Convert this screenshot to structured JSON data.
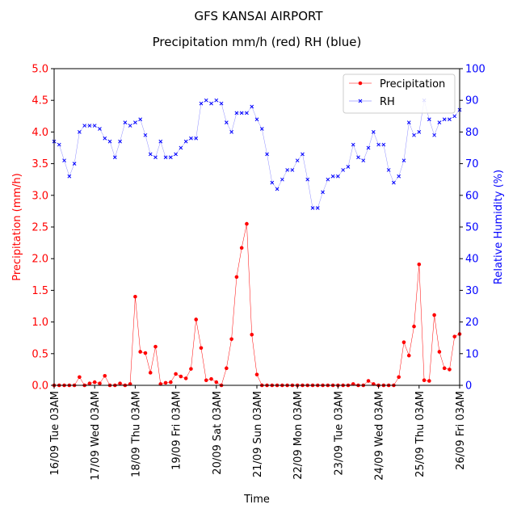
{
  "chart_data": {
    "type": "line",
    "title": "GFS KANSAI AIRPORT",
    "subtitle": "Precipitation mm/h (red) RH (blue)",
    "xlabel": "Time",
    "ylabel_left": "Precipitation (mm/h)",
    "ylabel_right": "Relative Humidity (%)",
    "ylim_left": [
      0,
      5.0
    ],
    "ylim_right": [
      0,
      100
    ],
    "xlim_hours": [
      0,
      240
    ],
    "left_ticks": [
      "0.0",
      "0.5",
      "1.0",
      "1.5",
      "2.0",
      "2.5",
      "3.0",
      "3.5",
      "4.0",
      "4.5",
      "5.0"
    ],
    "right_ticks": [
      "0",
      "10",
      "20",
      "30",
      "40",
      "50",
      "60",
      "70",
      "80",
      "90",
      "100"
    ],
    "x_ticks": [
      {
        "hour": 0,
        "label": "16/09 Tue 03AM"
      },
      {
        "hour": 24,
        "label": "17/09 Wed 03AM"
      },
      {
        "hour": 48,
        "label": "18/09 Thu 03AM"
      },
      {
        "hour": 72,
        "label": "19/09 Fri 03AM"
      },
      {
        "hour": 96,
        "label": "20/09 Sat 03AM"
      },
      {
        "hour": 120,
        "label": "21/09 Sun 03AM"
      },
      {
        "hour": 144,
        "label": "22/09 Mon 03AM"
      },
      {
        "hour": 168,
        "label": "23/09 Tue 03AM"
      },
      {
        "hour": 192,
        "label": "24/09 Wed 03AM"
      },
      {
        "hour": 216,
        "label": "25/09 Thu 03AM"
      },
      {
        "hour": 240,
        "label": "26/09 Fri 03AM"
      }
    ],
    "grid": false,
    "legend": {
      "placement": "top-right",
      "entries": [
        "Precipitation",
        "RH"
      ]
    },
    "colors": {
      "precip": "#ff0000",
      "rh": "#0000ff",
      "axis": "#000000"
    },
    "series": [
      {
        "name": "Precipitation",
        "x": [
          0,
          3,
          6,
          9,
          12,
          15,
          18,
          21,
          24,
          27,
          30,
          33,
          36,
          39,
          42,
          45,
          48,
          51,
          54,
          57,
          60,
          63,
          66,
          69,
          72,
          75,
          78,
          81,
          84,
          87,
          90,
          93,
          96,
          99,
          102,
          105,
          108,
          111,
          114,
          117,
          120,
          123,
          126,
          129,
          132,
          135,
          138,
          141,
          144,
          147,
          150,
          153,
          156,
          159,
          162,
          165,
          168,
          171,
          174,
          177,
          180,
          183,
          186,
          189,
          192,
          195,
          198,
          201,
          204,
          207,
          210,
          213,
          216,
          219,
          222,
          225,
          228,
          231,
          234,
          237,
          240
        ],
        "values": [
          0,
          0,
          0,
          0,
          0,
          0.13,
          0,
          0.03,
          0.05,
          0.03,
          0.15,
          0,
          0,
          0.03,
          0,
          0.02,
          1.4,
          0.53,
          0.51,
          0.2,
          0.61,
          0.02,
          0.04,
          0.05,
          0.18,
          0.14,
          0.11,
          0.26,
          1.04,
          0.59,
          0.08,
          0.1,
          0.05,
          0,
          0.27,
          0.73,
          1.71,
          2.17,
          2.55,
          0.8,
          0.17,
          0,
          0,
          0,
          0,
          0,
          0,
          0,
          0,
          0,
          0,
          0,
          0,
          0,
          0,
          0,
          0,
          0,
          0,
          0.02,
          0,
          0,
          0.07,
          0.02,
          0,
          0,
          0,
          0,
          0.13,
          0.68,
          0.47,
          0.93,
          1.91,
          0.08,
          0.07,
          1.11,
          0.53,
          0.27,
          0.25,
          0.77,
          0.81
        ]
      },
      {
        "name": "RH",
        "x": [
          0,
          3,
          6,
          9,
          12,
          15,
          18,
          21,
          24,
          27,
          30,
          33,
          36,
          39,
          42,
          45,
          48,
          51,
          54,
          57,
          60,
          63,
          66,
          69,
          72,
          75,
          78,
          81,
          84,
          87,
          90,
          93,
          96,
          99,
          102,
          105,
          108,
          111,
          114,
          117,
          120,
          123,
          126,
          129,
          132,
          135,
          138,
          141,
          144,
          147,
          150,
          153,
          156,
          159,
          162,
          165,
          168,
          171,
          174,
          177,
          180,
          183,
          186,
          189,
          192,
          195,
          198,
          201,
          204,
          207,
          210,
          213,
          216,
          219,
          222,
          225,
          228,
          231,
          234,
          237,
          240
        ],
        "values": [
          77,
          76,
          71,
          66,
          70,
          80,
          82,
          82,
          82,
          81,
          78,
          77,
          72,
          77,
          83,
          82,
          83,
          84,
          79,
          73,
          72,
          77,
          72,
          72,
          73,
          75,
          77,
          78,
          78,
          89,
          90,
          89,
          90,
          89,
          83,
          80,
          86,
          86,
          86,
          88,
          84,
          81,
          73,
          64,
          62,
          65,
          68,
          68,
          71,
          73,
          65,
          56,
          56,
          61,
          65,
          66,
          66,
          68,
          69,
          76,
          72,
          71,
          75,
          80,
          76,
          76,
          68,
          64,
          66,
          71,
          83,
          79,
          80,
          90,
          84,
          79,
          83,
          84,
          84,
          85,
          87
        ]
      }
    ]
  }
}
